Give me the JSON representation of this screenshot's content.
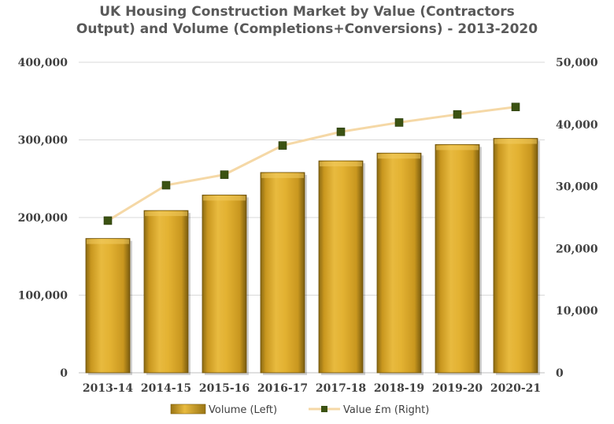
{
  "chart_data": {
    "type": "bar",
    "title_line1": "UK Housing Construction Market by Value (Contractors",
    "title_line2": "Output) and Volume (Completions+Conversions) - 2013-2020",
    "categories": [
      "2013-14",
      "2014-15",
      "2015-16",
      "2016-17",
      "2017-18",
      "2018-19",
      "2019-20",
      "2020-21"
    ],
    "series": [
      {
        "name": "Volume (Left)",
        "type": "bar",
        "axis": "left",
        "values": [
          173000,
          209000,
          229000,
          258000,
          273000,
          283000,
          294000,
          302000
        ],
        "color": "#E3B232"
      },
      {
        "name": "Value £m (Right)",
        "type": "line",
        "axis": "right",
        "values": [
          24500,
          30200,
          31900,
          36600,
          38800,
          40300,
          41600,
          42800
        ],
        "color": "#F5D8A6",
        "marker_color": "#3B5212"
      }
    ],
    "y_left": {
      "min": 0,
      "max": 400000,
      "ticks": [
        "0",
        "100,000",
        "200,000",
        "300,000",
        "400,000"
      ]
    },
    "y_right": {
      "min": 0,
      "max": 50000,
      "ticks": [
        "0",
        "10,000",
        "20,000",
        "30,000",
        "40,000",
        "50,000"
      ]
    },
    "grid": true,
    "legend_position": "bottom"
  }
}
